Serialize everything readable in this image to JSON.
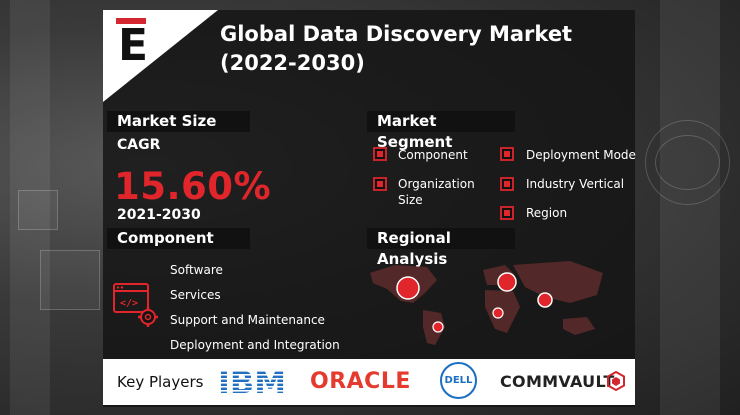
{
  "title": "Global Data Discovery Market (2022-2030)",
  "logo": {
    "letter": "E",
    "icon": "e-brand-logo",
    "accent": "#d3262e"
  },
  "market_size": {
    "header": "Market Size",
    "cagr_label": "CAGR",
    "cagr_value": "15.60%",
    "period": "2021-2030"
  },
  "market_segment": {
    "header": "Market Segment",
    "items": [
      "Component",
      "Deployment Mode",
      "Organization Size",
      "Industry Vertical",
      "Region"
    ]
  },
  "component": {
    "header": "Component",
    "icon": "software-gear-icon",
    "items": [
      "Software",
      "Services",
      "Support and Maintenance",
      "Deployment and Integration"
    ]
  },
  "regional": {
    "header": "Regional Analysis",
    "icon": "world-map"
  },
  "key_players": {
    "label": "Key Players",
    "companies": [
      "IBM",
      "ORACLE",
      "DELL",
      "COMMVAULT"
    ]
  },
  "colors": {
    "accent": "#e0252b",
    "card": "#141414",
    "oracle": "#e53a2e",
    "dell": "#1a6fc0"
  }
}
